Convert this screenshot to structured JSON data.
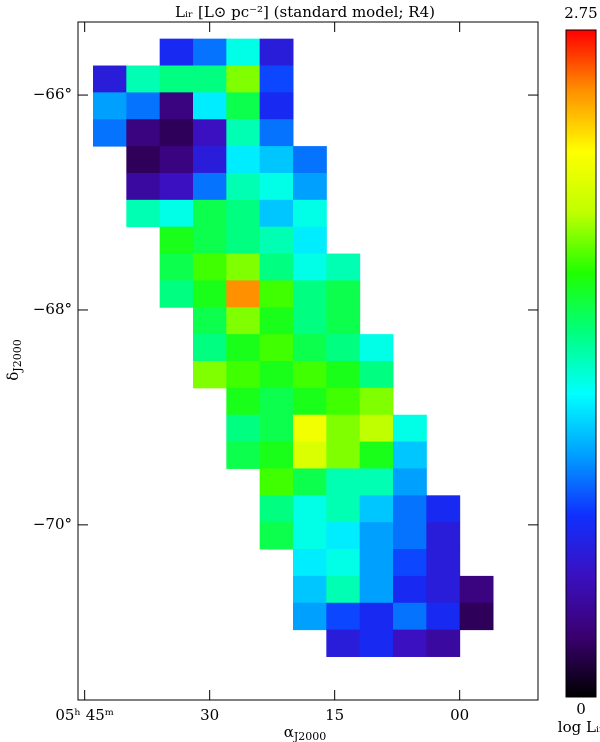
{
  "chart_data": {
    "type": "heatmap",
    "title": "Lᵢᵣ [L⊙ pc⁻²] (standard model; R4)",
    "xlabel": {
      "symbol": "α",
      "subscript": "J2000"
    },
    "ylabel": {
      "symbol": "δ",
      "subscript": "J2000"
    },
    "colorbar_label": "log Lᵢᵣ",
    "xlim": [
      45.8,
      -9.4
    ],
    "xticks": [
      {
        "value": 45,
        "label": "05ʰ 45ᵐ"
      },
      30,
      15,
      {
        "value": 0,
        "label": "00"
      }
    ],
    "ylim": [
      -71.63,
      -65.32
    ],
    "yticks": [
      {
        "value": -66,
        "label": "−66°"
      },
      {
        "value": -68,
        "label": "−68°"
      },
      {
        "value": -70,
        "label": "−70°"
      }
    ],
    "zlim": [
      0,
      2.75
    ],
    "zticks": [
      0,
      2.75
    ],
    "colorscale": [
      "#000000",
      "#3a0070",
      "#3a10c0",
      "#1030ff",
      "#00a0ff",
      "#00ffff",
      "#00ff80",
      "#20ff00",
      "#c0ff00",
      "#ffff00",
      "#ff9000",
      "#ff0000"
    ],
    "x": [
      42,
      38,
      34,
      30,
      26,
      22,
      18,
      14,
      10,
      6,
      2,
      -2
    ],
    "y": [
      -65.6,
      -65.85,
      -66.1,
      -66.35,
      -66.6,
      -66.85,
      -67.1,
      -67.35,
      -67.6,
      -67.85,
      -68.1,
      -68.35,
      -68.6,
      -68.85,
      -69.1,
      -69.35,
      -69.6,
      -69.85,
      -70.1,
      -70.35,
      -70.6,
      -70.85,
      -71.1
    ],
    "z": [
      [
        null,
        null,
        0.7,
        0.9,
        1.3,
        0.6,
        null,
        null,
        null,
        null,
        null,
        null
      ],
      [
        0.6,
        1.4,
        1.5,
        1.5,
        1.9,
        0.8,
        null,
        null,
        null,
        null,
        null,
        null
      ],
      [
        1.0,
        0.9,
        0.3,
        1.2,
        1.6,
        0.7,
        null,
        null,
        null,
        null,
        null,
        null
      ],
      [
        0.9,
        0.3,
        0.2,
        0.5,
        1.4,
        0.9,
        null,
        null,
        null,
        null,
        null,
        null
      ],
      [
        null,
        0.2,
        0.3,
        0.6,
        1.2,
        1.1,
        0.9,
        null,
        null,
        null,
        null,
        null
      ],
      [
        null,
        0.4,
        0.5,
        0.9,
        1.4,
        1.3,
        1.0,
        null,
        null,
        null,
        null,
        null
      ],
      [
        null,
        1.4,
        1.3,
        1.6,
        1.5,
        1.1,
        1.3,
        null,
        null,
        null,
        null,
        null
      ],
      [
        null,
        null,
        1.7,
        1.6,
        1.5,
        1.4,
        1.2,
        null,
        null,
        null,
        null,
        null
      ],
      [
        null,
        null,
        1.6,
        1.8,
        1.9,
        1.5,
        1.3,
        1.4,
        null,
        null,
        null,
        null
      ],
      [
        null,
        null,
        1.5,
        1.7,
        2.5,
        1.8,
        1.5,
        1.6,
        null,
        null,
        null,
        null
      ],
      [
        null,
        null,
        null,
        1.6,
        1.9,
        1.7,
        1.5,
        1.6,
        null,
        null,
        null,
        null
      ],
      [
        null,
        null,
        null,
        1.5,
        1.7,
        1.8,
        1.6,
        1.5,
        1.3,
        null,
        null,
        null
      ],
      [
        null,
        null,
        null,
        1.9,
        1.8,
        1.7,
        1.8,
        1.7,
        1.5,
        null,
        null,
        null
      ],
      [
        null,
        null,
        null,
        null,
        1.7,
        1.6,
        1.7,
        1.8,
        1.9,
        null,
        null,
        null
      ],
      [
        null,
        null,
        null,
        null,
        1.5,
        1.6,
        2.2,
        1.9,
        2.0,
        1.3,
        null,
        null
      ],
      [
        null,
        null,
        null,
        null,
        1.6,
        1.7,
        2.1,
        1.9,
        1.7,
        1.1,
        null,
        null
      ],
      [
        null,
        null,
        null,
        null,
        null,
        1.8,
        1.6,
        1.4,
        1.4,
        1.0,
        null,
        null
      ],
      [
        null,
        null,
        null,
        null,
        null,
        1.5,
        1.3,
        1.4,
        1.1,
        0.9,
        0.7,
        null
      ],
      [
        null,
        null,
        null,
        null,
        null,
        1.6,
        1.3,
        1.2,
        1.0,
        0.9,
        0.6,
        null
      ],
      [
        null,
        null,
        null,
        null,
        null,
        null,
        1.2,
        1.3,
        1.0,
        0.8,
        0.6,
        null
      ],
      [
        null,
        null,
        null,
        null,
        null,
        null,
        1.1,
        1.4,
        1.0,
        0.7,
        0.6,
        0.3
      ],
      [
        null,
        null,
        null,
        null,
        null,
        null,
        1.0,
        0.8,
        0.7,
        0.9,
        0.7,
        0.2
      ],
      [
        null,
        null,
        null,
        null,
        null,
        null,
        null,
        0.6,
        0.7,
        0.5,
        0.4,
        null
      ]
    ]
  }
}
